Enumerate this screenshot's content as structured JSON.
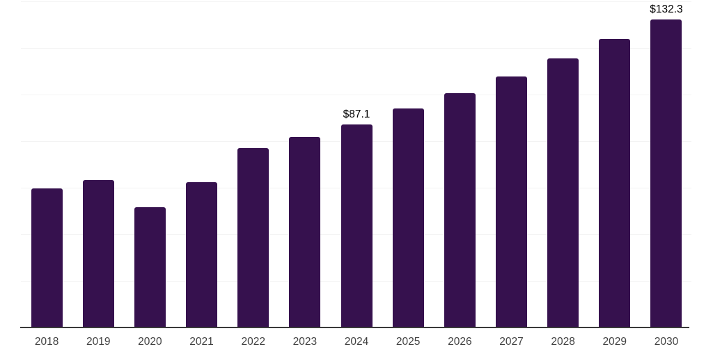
{
  "chart_data": {
    "type": "bar",
    "title": "",
    "xlabel": "",
    "ylabel": "",
    "categories": [
      "2018",
      "2019",
      "2020",
      "2021",
      "2022",
      "2023",
      "2024",
      "2025",
      "2026",
      "2027",
      "2028",
      "2029",
      "2030"
    ],
    "values": [
      59.7,
      63.4,
      51.6,
      62.4,
      76.9,
      81.9,
      87.1,
      93.9,
      100.6,
      107.8,
      115.4,
      123.9,
      132.3
    ],
    "value_labels": [
      "",
      "",
      "",
      "",
      "",
      "",
      "$87.1",
      "",
      "",
      "",
      "",
      "",
      "$132.3"
    ],
    "ylim": [
      0,
      140
    ],
    "gridline_step": 20,
    "grid": true,
    "legend_position": "none",
    "colors": {
      "bar": "#36114E",
      "background": "#FFFFFF",
      "gridline": "#F3F3F3",
      "axis_line": "#3A3A3A",
      "tick_label": "#414141",
      "value_label": "#000000"
    }
  }
}
